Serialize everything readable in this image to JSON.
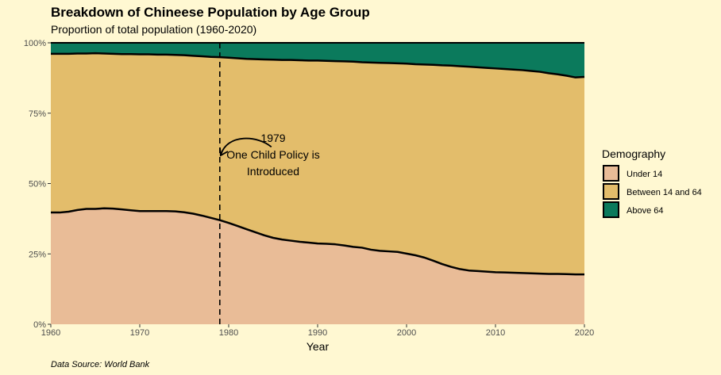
{
  "chart_data": {
    "type": "area",
    "stacked": "proportion",
    "title": "Breakdown of Chineese Population by Age Group",
    "subtitle": "Proportion of total population (1960-2020)",
    "xlabel": "Year",
    "ylabel": "",
    "caption": "Data Source: World Bank",
    "xlim": [
      1960,
      2020
    ],
    "ylim": [
      0,
      1
    ],
    "x_ticks": [
      1960,
      1970,
      1980,
      1990,
      2000,
      2010,
      2020
    ],
    "x_tick_labels": [
      "1960",
      "1970",
      "1980",
      "1990",
      "2000",
      "2010",
      "2020"
    ],
    "y_ticks": [
      0,
      0.25,
      0.5,
      0.75,
      1
    ],
    "y_tick_labels": [
      "0%",
      "25%",
      "50%",
      "75%",
      "100%"
    ],
    "grid": false,
    "legend": {
      "title": "Demography",
      "position": "right",
      "entries": [
        "Under 14",
        "Between 14 and 64",
        "Above 64"
      ]
    },
    "x": [
      1960,
      1961,
      1962,
      1963,
      1964,
      1965,
      1966,
      1967,
      1968,
      1969,
      1970,
      1971,
      1972,
      1973,
      1974,
      1975,
      1976,
      1977,
      1978,
      1979,
      1980,
      1981,
      1982,
      1983,
      1984,
      1985,
      1986,
      1987,
      1988,
      1989,
      1990,
      1991,
      1992,
      1993,
      1994,
      1995,
      1996,
      1997,
      1998,
      1999,
      2000,
      2001,
      2002,
      2003,
      2004,
      2005,
      2006,
      2007,
      2008,
      2009,
      2010,
      2011,
      2012,
      2013,
      2014,
      2015,
      2016,
      2017,
      2018,
      2019,
      2020
    ],
    "series": [
      {
        "name": "Under 14",
        "color": "#e9bc97",
        "values": [
          0.397,
          0.397,
          0.4,
          0.406,
          0.41,
          0.41,
          0.412,
          0.411,
          0.408,
          0.405,
          0.402,
          0.402,
          0.402,
          0.402,
          0.401,
          0.398,
          0.393,
          0.386,
          0.378,
          0.37,
          0.36,
          0.349,
          0.338,
          0.327,
          0.316,
          0.307,
          0.301,
          0.297,
          0.293,
          0.29,
          0.287,
          0.286,
          0.284,
          0.28,
          0.275,
          0.272,
          0.265,
          0.261,
          0.259,
          0.257,
          0.251,
          0.245,
          0.237,
          0.226,
          0.214,
          0.204,
          0.196,
          0.191,
          0.189,
          0.187,
          0.185,
          0.184,
          0.183,
          0.182,
          0.181,
          0.18,
          0.179,
          0.179,
          0.178,
          0.177,
          0.177
        ]
      },
      {
        "name": "Between 14 and 64",
        "color": "#e3bd6b",
        "values": [
          0.564,
          0.564,
          0.561,
          0.556,
          0.552,
          0.553,
          0.55,
          0.55,
          0.552,
          0.555,
          0.557,
          0.557,
          0.556,
          0.556,
          0.556,
          0.558,
          0.561,
          0.566,
          0.572,
          0.579,
          0.587,
          0.596,
          0.605,
          0.615,
          0.625,
          0.633,
          0.638,
          0.642,
          0.645,
          0.647,
          0.65,
          0.65,
          0.651,
          0.654,
          0.658,
          0.659,
          0.665,
          0.668,
          0.669,
          0.67,
          0.675,
          0.679,
          0.686,
          0.696,
          0.706,
          0.715,
          0.721,
          0.724,
          0.724,
          0.724,
          0.724,
          0.723,
          0.722,
          0.721,
          0.719,
          0.717,
          0.713,
          0.709,
          0.705,
          0.7,
          0.702
        ]
      },
      {
        "name": "Above 64",
        "color": "#0b7a5c",
        "values": [
          0.039,
          0.039,
          0.039,
          0.038,
          0.038,
          0.037,
          0.038,
          0.039,
          0.04,
          0.04,
          0.041,
          0.041,
          0.042,
          0.042,
          0.043,
          0.044,
          0.046,
          0.048,
          0.05,
          0.051,
          0.053,
          0.055,
          0.057,
          0.058,
          0.059,
          0.06,
          0.061,
          0.061,
          0.062,
          0.063,
          0.063,
          0.064,
          0.065,
          0.066,
          0.067,
          0.069,
          0.07,
          0.071,
          0.072,
          0.073,
          0.074,
          0.076,
          0.077,
          0.078,
          0.08,
          0.081,
          0.083,
          0.085,
          0.087,
          0.089,
          0.091,
          0.093,
          0.095,
          0.097,
          0.1,
          0.103,
          0.108,
          0.112,
          0.117,
          0.123,
          0.121
        ]
      }
    ],
    "annotations": [
      {
        "type": "vline",
        "x": 1979,
        "style": "dashed"
      },
      {
        "type": "label",
        "x": 1985,
        "y": 0.6,
        "lines": [
          "1979",
          "One Child Policy is",
          "Introduced"
        ]
      },
      {
        "type": "curved-arrow",
        "from": [
          1984.8,
          0.63
        ],
        "to": [
          1979.1,
          0.6
        ]
      }
    ]
  }
}
